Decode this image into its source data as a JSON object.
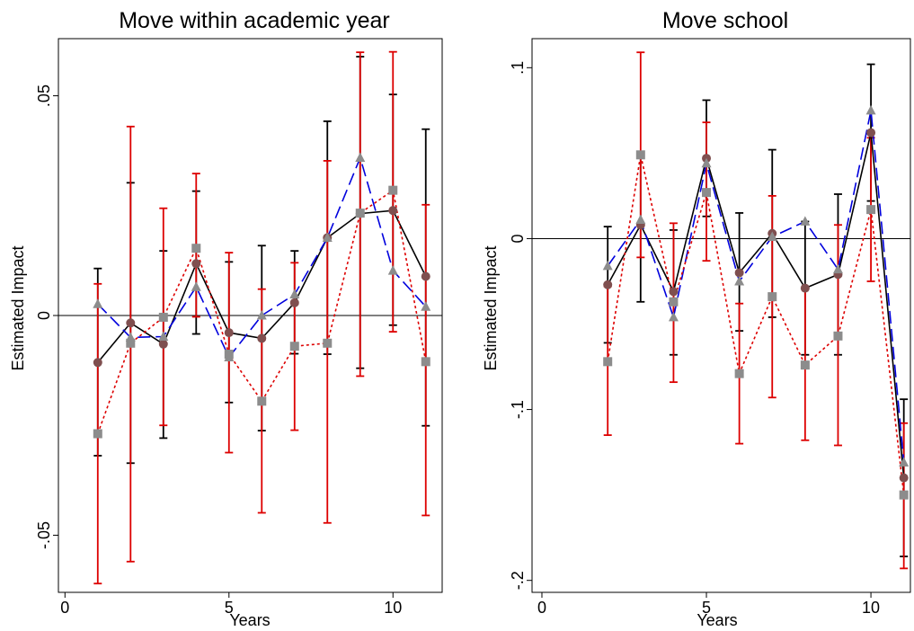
{
  "chart_data": [
    {
      "type": "line",
      "title": "Move within academic year",
      "xlabel": "Years",
      "ylabel": "Estimated Impact",
      "xlim": [
        -0.2,
        11.5
      ],
      "ylim": [
        -0.063,
        0.063
      ],
      "xticks": [
        {
          "value": 0,
          "label": "0"
        },
        {
          "value": 5,
          "label": "5"
        },
        {
          "value": 10,
          "label": "10"
        }
      ],
      "yticks": [
        {
          "value": -0.05,
          "label": "-.05"
        },
        {
          "value": 0,
          "label": "0"
        },
        {
          "value": 0.05,
          "label": ".05"
        }
      ],
      "reference_line": 0,
      "series": [
        {
          "color": "#000000",
          "line_style": "solid",
          "marker": "circle",
          "marker_color": "#7f4f4f",
          "x": [
            1,
            2,
            3,
            4,
            5,
            6,
            7,
            8,
            9,
            10,
            11
          ],
          "y": [
            -0.0107,
            -0.0017,
            -0.0065,
            0.0118,
            -0.0039,
            -0.0052,
            0.0029,
            0.0177,
            0.0232,
            0.0239,
            0.0089
          ],
          "ci_low": [
            -0.0319,
            -0.0336,
            -0.0279,
            -0.0042,
            -0.0198,
            -0.0262,
            -0.0087,
            -0.0088,
            -0.012,
            -0.0022,
            -0.0251
          ],
          "ci_high": [
            0.0107,
            0.0302,
            0.0147,
            0.0283,
            0.0122,
            0.0159,
            0.0147,
            0.0442,
            0.0589,
            0.0503,
            0.0424
          ]
        },
        {
          "color": "#0000dd",
          "line_style": "dashed",
          "marker": "triangle",
          "marker_color": "#8c8c8c",
          "x": [
            1,
            2,
            3,
            4,
            5,
            6,
            7,
            8,
            9,
            10,
            11
          ],
          "y": [
            0.0026,
            -0.005,
            -0.0048,
            0.0065,
            -0.0095,
            0.0,
            0.0048,
            0.0177,
            0.0359,
            0.0102,
            0.002
          ]
        },
        {
          "color": "#dd0000",
          "line_style": "dotted",
          "marker": "square",
          "marker_color": "#8c8c8c",
          "x": [
            1,
            2,
            3,
            4,
            5,
            6,
            7,
            8,
            9,
            10,
            11
          ],
          "y": [
            -0.0269,
            -0.0063,
            -0.0004,
            0.0153,
            -0.0088,
            -0.0195,
            -0.007,
            -0.0063,
            0.0233,
            0.0285,
            -0.0105
          ],
          "ci_low": [
            -0.061,
            -0.056,
            -0.025,
            -0.0003,
            -0.0312,
            -0.0449,
            -0.0261,
            -0.0472,
            -0.0138,
            -0.0037,
            -0.0455
          ],
          "ci_high": [
            0.0072,
            0.043,
            0.0244,
            0.0323,
            0.0143,
            0.006,
            0.012,
            0.0352,
            0.0599,
            0.06,
            0.0252
          ]
        }
      ]
    },
    {
      "type": "line",
      "title": "Move school",
      "xlabel": "Years",
      "ylabel": "Estimated Impact",
      "xlim": [
        -0.3,
        11.2
      ],
      "ylim": [
        -0.207,
        0.117
      ],
      "xticks": [
        {
          "value": 0,
          "label": "0"
        },
        {
          "value": 5,
          "label": "5"
        },
        {
          "value": 10,
          "label": "10"
        }
      ],
      "yticks": [
        {
          "value": -0.2,
          "label": "-.2"
        },
        {
          "value": -0.1,
          "label": "-.1"
        },
        {
          "value": 0,
          "label": "0"
        },
        {
          "value": 0.1,
          "label": ".1"
        }
      ],
      "reference_line": 0,
      "series": [
        {
          "color": "#000000",
          "line_style": "solid",
          "marker": "circle",
          "marker_color": "#7f4f4f",
          "x": [
            2,
            3,
            4,
            5,
            6,
            7,
            8,
            9,
            10,
            11
          ],
          "y": [
            -0.027,
            0.008,
            -0.031,
            0.047,
            -0.02,
            0.003,
            -0.029,
            -0.021,
            0.062,
            -0.14
          ],
          "ci_low": [
            -0.061,
            -0.037,
            -0.068,
            0.013,
            -0.054,
            -0.046,
            -0.068,
            -0.068,
            0.022,
            -0.186
          ],
          "ci_high": [
            0.007,
            0.049,
            0.005,
            0.081,
            0.015,
            0.052,
            0.01,
            0.026,
            0.102,
            -0.094
          ]
        },
        {
          "color": "#0000dd",
          "line_style": "dashed",
          "marker": "triangle",
          "marker_color": "#8c8c8c",
          "x": [
            2,
            3,
            4,
            5,
            6,
            7,
            8,
            9,
            10,
            11
          ],
          "y": [
            -0.016,
            0.011,
            -0.046,
            0.044,
            -0.025,
            0.001,
            0.01,
            -0.018,
            0.075,
            -0.131
          ]
        },
        {
          "color": "#dd0000",
          "line_style": "dotted",
          "marker": "square",
          "marker_color": "#8c8c8c",
          "x": [
            2,
            3,
            4,
            5,
            6,
            7,
            8,
            9,
            10,
            11
          ],
          "y": [
            -0.072,
            0.049,
            -0.037,
            0.027,
            -0.079,
            -0.034,
            -0.074,
            -0.057,
            0.017,
            -0.15
          ],
          "ci_low": [
            -0.115,
            -0.011,
            -0.084,
            -0.013,
            -0.12,
            -0.093,
            -0.118,
            -0.121,
            -0.025,
            -0.193
          ],
          "ci_high": [
            -0.028,
            0.109,
            0.009,
            0.068,
            -0.038,
            0.025,
            -0.029,
            0.008,
            0.059,
            -0.108
          ]
        }
      ]
    }
  ]
}
